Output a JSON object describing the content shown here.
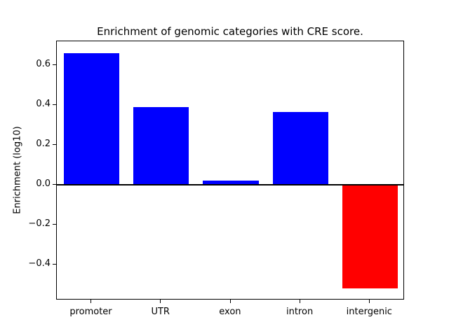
{
  "chart_data": {
    "type": "bar",
    "title": "Enrichment of genomic categories with CRE score.",
    "xlabel": "",
    "ylabel": "Enrichment (log10)",
    "categories": [
      "promoter",
      "UTR",
      "exon",
      "intron",
      "intergenic"
    ],
    "values": [
      0.66,
      0.39,
      0.02,
      0.365,
      -0.52
    ],
    "bar_colors": [
      "#0000ff",
      "#0000ff",
      "#0000ff",
      "#0000ff",
      "#ff0000"
    ],
    "positive_color": "#0000ff",
    "negative_color": "#ff0000",
    "yticks": [
      -0.4,
      -0.2,
      0.0,
      0.2,
      0.4,
      0.6
    ],
    "ylim": [
      -0.58,
      0.72
    ],
    "grid": false,
    "legend": "none",
    "zero_line_color": "#000000"
  }
}
